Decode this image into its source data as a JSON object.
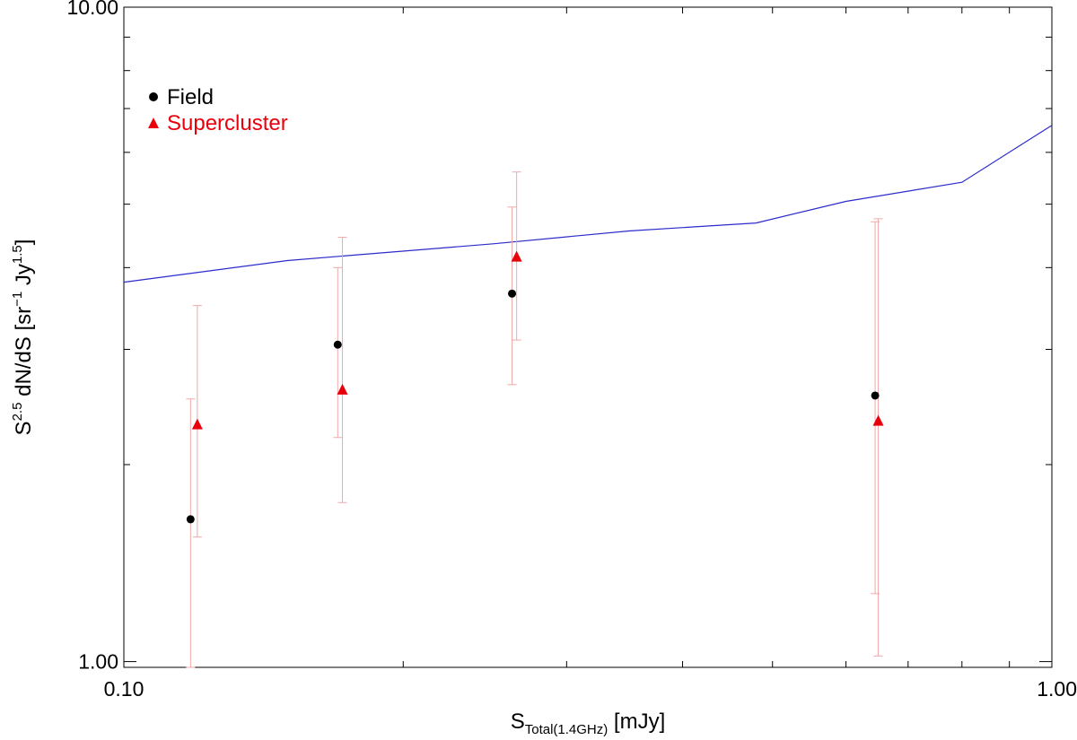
{
  "chart_data": {
    "type": "scatter",
    "title": "",
    "xlabel": {
      "base": "S",
      "sub": "Total(1.4GHz)",
      "suffix": " [mJy]"
    },
    "ylabel": {
      "base": "S",
      "sup": "2.5",
      "mid": " dN/dS  [sr",
      "sup2": "−1",
      "mid2": " Jy",
      "sup3": "1.5",
      "end": "]"
    },
    "xscale": "log",
    "yscale": "log",
    "xlim": [
      0.1,
      1.0
    ],
    "ylim": [
      0.98,
      10.0
    ],
    "x_tick_labels": [
      {
        "value": 0.1,
        "label": "0.10"
      },
      {
        "value": 1.0,
        "label": "1.00"
      }
    ],
    "y_tick_labels": [
      {
        "value": 1.0,
        "label": "1.00"
      },
      {
        "value": 10.0,
        "label": "10.00"
      }
    ],
    "x_minor_ticks": [
      0.2,
      0.3,
      0.4,
      0.5,
      0.6,
      0.7,
      0.8,
      0.9
    ],
    "y_minor_ticks": [
      2,
      3,
      4,
      5,
      6,
      7,
      8,
      9
    ],
    "grid": false,
    "legend_position": "top-left",
    "colors": {
      "field": "#000000",
      "supercluster": "#e8000b",
      "model": "#2b2bcc",
      "errorbar": "#f0a8a8"
    },
    "series": [
      {
        "name": "Field",
        "marker": "circle",
        "color": "#000000",
        "points": [
          {
            "x": 0.118,
            "y": 1.65,
            "ylo": 0.98,
            "yhi": 2.52
          },
          {
            "x": 0.17,
            "y": 3.05,
            "ylo": 2.2,
            "yhi": 4.0
          },
          {
            "x": 0.262,
            "y": 3.65,
            "ylo": 2.65,
            "yhi": 4.95
          },
          {
            "x": 0.645,
            "y": 2.55,
            "ylo": 1.27,
            "yhi": 4.7
          }
        ]
      },
      {
        "name": "Supercluster",
        "marker": "triangle",
        "color": "#e8000b",
        "points": [
          {
            "x": 0.12,
            "y": 2.3,
            "ylo": 1.55,
            "yhi": 3.5
          },
          {
            "x": 0.172,
            "y": 2.6,
            "ylo": 1.75,
            "yhi": 4.45
          },
          {
            "x": 0.265,
            "y": 4.15,
            "ylo": 3.1,
            "yhi": 5.6
          },
          {
            "x": 0.65,
            "y": 2.33,
            "ylo": 1.02,
            "yhi": 4.75
          }
        ]
      },
      {
        "name": "",
        "type": "line",
        "color": "#2b2bcc",
        "points": [
          {
            "x": 0.1,
            "y": 3.8
          },
          {
            "x": 0.15,
            "y": 4.1
          },
          {
            "x": 0.25,
            "y": 4.35
          },
          {
            "x": 0.35,
            "y": 4.55
          },
          {
            "x": 0.48,
            "y": 4.68
          },
          {
            "x": 0.6,
            "y": 5.05
          },
          {
            "x": 0.8,
            "y": 5.4
          },
          {
            "x": 1.0,
            "y": 6.6
          }
        ]
      }
    ]
  }
}
